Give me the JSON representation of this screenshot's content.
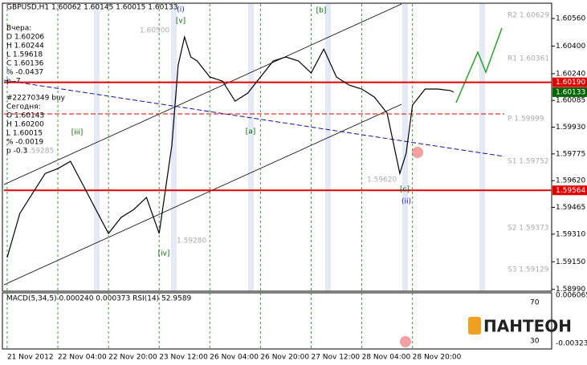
{
  "chart_data": [
    {
      "type": "line",
      "title": "GBPUSD,H1  1.60062 1.60145 1.60015 1.60133",
      "x": [
        0,
        4,
        8,
        12,
        16,
        20,
        24,
        28,
        32,
        36,
        40,
        44,
        48,
        52,
        54,
        56,
        58,
        60,
        64,
        68,
        72,
        76,
        80,
        84,
        88,
        92,
        96,
        100,
        104,
        108,
        112,
        116,
        120,
        124,
        126,
        128,
        132,
        136,
        140,
        141
      ],
      "series": [
        {
          "name": "GBPUSD",
          "color": "#000000",
          "values": [
            1.59174,
            1.5943,
            1.59546,
            1.59662,
            1.5969,
            1.59732,
            1.59593,
            1.59453,
            1.59314,
            1.59407,
            1.59453,
            1.59523,
            1.59314,
            1.59825,
            1.6029,
            1.60453,
            1.60337,
            1.60314,
            1.60221,
            1.60197,
            1.60081,
            1.60128,
            1.60221,
            1.60314,
            1.60337,
            1.60314,
            1.60244,
            1.60383,
            1.60221,
            1.60174,
            1.60151,
            1.60104,
            1.60011,
            1.59662,
            1.59779,
            1.60058,
            1.60151,
            1.60151,
            1.60142,
            1.60133
          ]
        }
      ],
      "xlim": [
        -1,
        157
      ],
      "xticks": [
        {
          "value": 0,
          "label": "21 Nov 2012"
        },
        {
          "value": 16,
          "label": "22 Nov 04:00"
        },
        {
          "value": 32,
          "label": "22 Nov 20:00"
        },
        {
          "value": 48,
          "label": "23 Nov 12:00"
        },
        {
          "value": 64,
          "label": "26 Nov 04:00"
        },
        {
          "value": 80,
          "label": "26 Nov 20:00"
        },
        {
          "value": 96,
          "label": "27 Nov 12:00"
        },
        {
          "value": 112,
          "label": "28 Nov 04:00"
        },
        {
          "value": 128,
          "label": "28 Nov 20:00"
        }
      ],
      "ylim": [
        1.5897,
        1.6063
      ],
      "yticks": [
        {
          "value": 1.5899,
          "label": "1.58990"
        },
        {
          "value": 1.5915,
          "label": "1.59150"
        },
        {
          "value": 1.5931,
          "label": "1.59310"
        },
        {
          "value": 1.59465,
          "label": "1.59465"
        },
        {
          "value": 1.5962,
          "label": "1.59620"
        },
        {
          "value": 1.59775,
          "label": "1.59775"
        },
        {
          "value": 1.5993,
          "label": "1.59930"
        },
        {
          "value": 1.60085,
          "label": "1.60085"
        },
        {
          "value": 1.6024,
          "label": "1.60240"
        },
        {
          "value": 1.604,
          "label": "1.60400"
        },
        {
          "value": 1.6056,
          "label": "1.60560"
        }
      ],
      "price_levels": [
        {
          "value": 1.6019,
          "label": "1.60190",
          "color": "#e00000"
        },
        {
          "value": 1.60133,
          "label": "1.60133",
          "color": "#006400"
        },
        {
          "value": 1.59564,
          "label": "1.59564",
          "color": "#e00000"
        }
      ],
      "pivots": [
        "R2 1.60629",
        "R1 1.60361",
        "P 1.59999",
        "S1 1.59752",
        "S2 1.59373",
        "S3 1.59129"
      ],
      "wave_labels": [
        "(i)",
        "[v]",
        "[iii]",
        "[iv]",
        "[a]",
        "[b]",
        "[c]",
        "(ii)"
      ],
      "price_marks": [
        "1.60500",
        "1.59285",
        "1.59280",
        "1.59620"
      ],
      "info_yesterday": [
        "Вчера:",
        "O 1.60206",
        "H 1.60244",
        "L 1.59618",
        "C 1.60136",
        "% -0.0437",
        "p -7"
      ],
      "order": "#22270349 buy",
      "info_today": [
        "Сегодня:",
        "O 1.60143",
        "H 1.60200",
        "L 1.60015",
        "% -0.0019",
        "p -0.3"
      ]
    },
    {
      "type": "indicator",
      "title": "MACD(5,34,5) 0.000240 0.000373 RSI(14) 52.9589",
      "axis_labels": [
        "0.006065",
        "70",
        "30",
        "-0.00323"
      ]
    }
  ],
  "logo": "ПАНТЕОН"
}
